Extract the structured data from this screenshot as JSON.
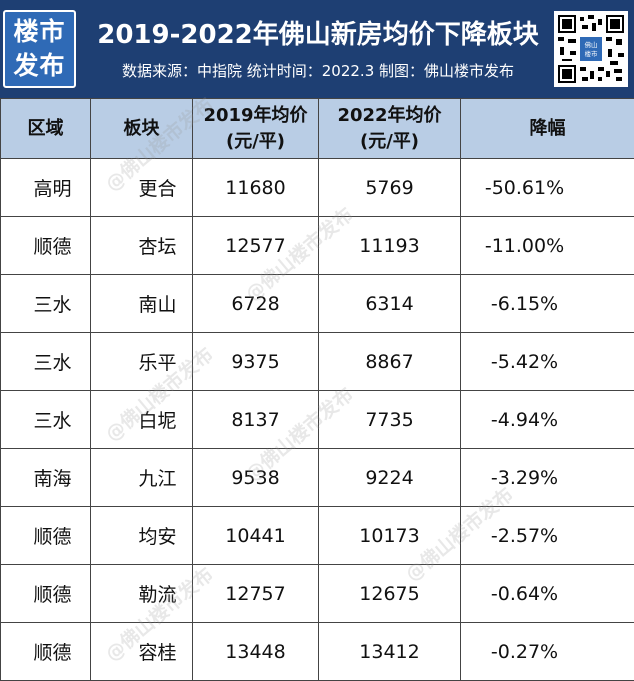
{
  "header": {
    "logo_line1": "楼市",
    "logo_line2": "发布",
    "title": "2019-2022年佛山新房均价下降板块",
    "subtitle": "数据来源：中指院 统计时间：2022.3 制图：佛山楼市发布",
    "qr_label": "佛山楼市发布"
  },
  "table": {
    "headers": {
      "region": "区域",
      "block": "板块",
      "price2019_line1": "2019年均价",
      "price2019_line2": "(元/平)",
      "price2022_line1": "2022年均价",
      "price2022_line2": "(元/平)",
      "drop": "降幅"
    },
    "rows": [
      {
        "region": "高明",
        "block": "更合",
        "p2019": "11680",
        "p2022": "5769",
        "drop": "-50.61%"
      },
      {
        "region": "顺德",
        "block": "杏坛",
        "p2019": "12577",
        "p2022": "11193",
        "drop": "-11.00%"
      },
      {
        "region": "三水",
        "block": "南山",
        "p2019": "6728",
        "p2022": "6314",
        "drop": "-6.15%"
      },
      {
        "region": "三水",
        "block": "乐平",
        "p2019": "9375",
        "p2022": "8867",
        "drop": "-5.42%"
      },
      {
        "region": "三水",
        "block": "白坭",
        "p2019": "8137",
        "p2022": "7735",
        "drop": "-4.94%"
      },
      {
        "region": "南海",
        "block": "九江",
        "p2019": "9538",
        "p2022": "9224",
        "drop": "-3.29%"
      },
      {
        "region": "顺德",
        "block": "均安",
        "p2019": "10441",
        "p2022": "10173",
        "drop": "-2.57%"
      },
      {
        "region": "顺德",
        "block": "勒流",
        "p2019": "12757",
        "p2022": "12675",
        "drop": "-0.64%"
      },
      {
        "region": "顺德",
        "block": "容桂",
        "p2019": "13448",
        "p2022": "13412",
        "drop": "-0.27%"
      }
    ]
  },
  "watermark": "@佛山楼市发布",
  "colors": {
    "header_bg": "#1e3f73",
    "logo_bg": "#2f6ab6",
    "table_header_bg": "#b9cde5"
  }
}
